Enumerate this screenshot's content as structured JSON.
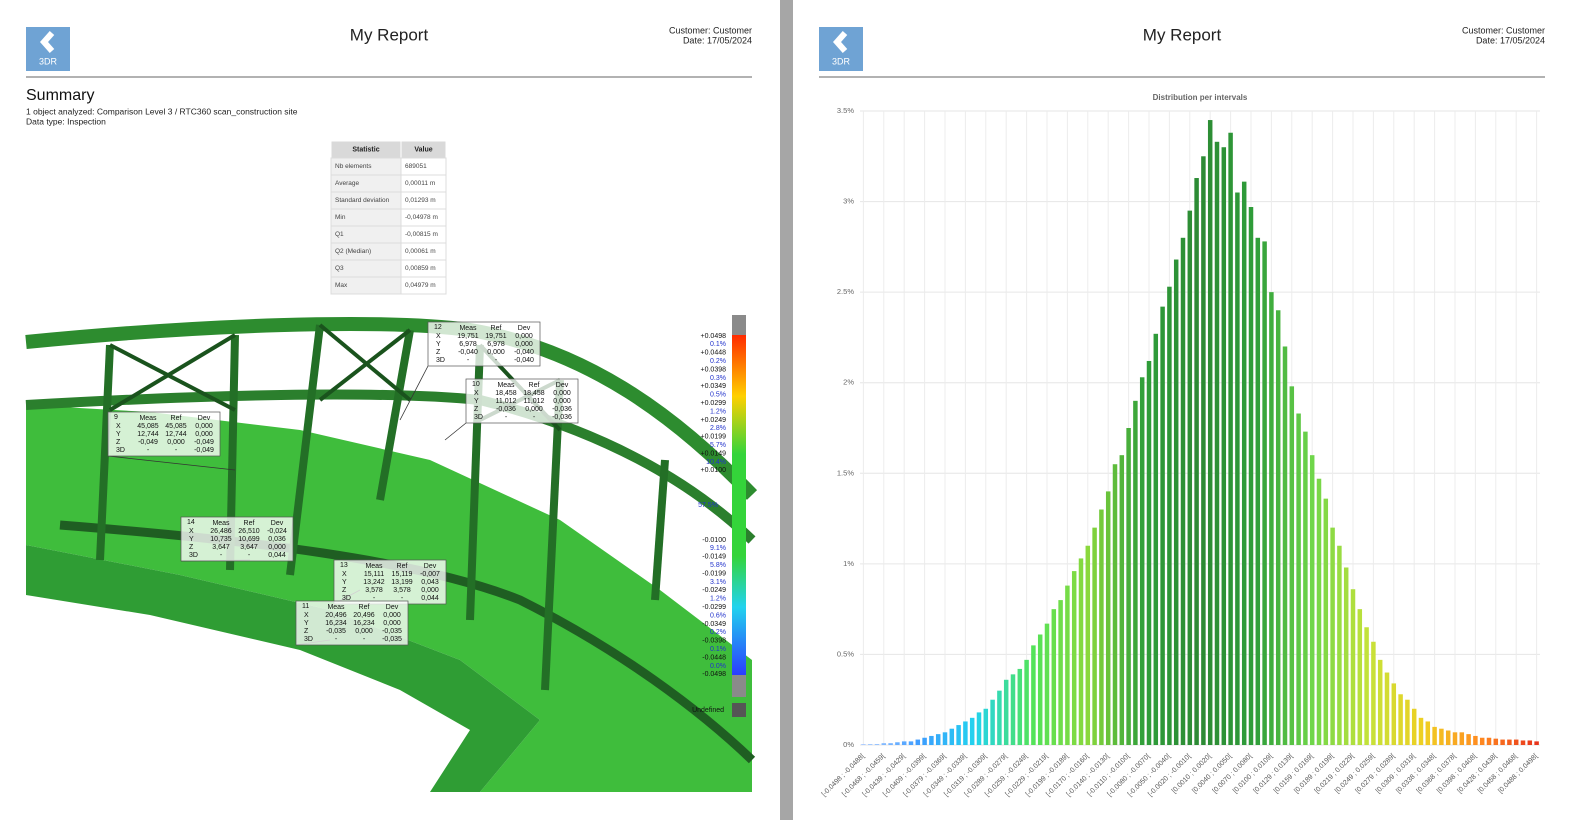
{
  "header": {
    "logo": "3DR",
    "title": "My Report",
    "customer": "Customer: Customer",
    "date": "Date: 17/05/2024"
  },
  "summary": {
    "heading": "Summary",
    "line1": "1 object analyzed: Comparison Level 3 / RTC360 scan_construction site",
    "line2": "Data type: Inspection"
  },
  "table": {
    "columns": [
      "Statistic",
      "Value"
    ],
    "rows": [
      [
        "Nb elements",
        "689051"
      ],
      [
        "Average",
        "0,00011 m"
      ],
      [
        "Standard deviation",
        "0,01293 m"
      ],
      [
        "Min",
        "-0,04978 m"
      ],
      [
        "Q1",
        "-0,00815 m"
      ],
      [
        "Q2 (Median)",
        "0,00061 m"
      ],
      [
        "Q3",
        "0,00859 m"
      ],
      [
        "Max",
        "0,04979 m"
      ]
    ]
  },
  "viewer": {
    "callouts": [
      {
        "id": "12",
        "columns": [
          "Meas",
          "Ref",
          "Dev"
        ],
        "rows": [
          [
            "X",
            "19,751",
            "19,751",
            "0,000"
          ],
          [
            "Y",
            "6,978",
            "6,978",
            "0,000"
          ],
          [
            "Z",
            "-0,040",
            "0,000",
            "-0,040"
          ],
          [
            "3D",
            "-",
            "-",
            "-0,040"
          ]
        ]
      },
      {
        "id": "10",
        "columns": [
          "Meas",
          "Ref",
          "Dev"
        ],
        "rows": [
          [
            "X",
            "18,458",
            "18,458",
            "0,000"
          ],
          [
            "Y",
            "11,012",
            "11,012",
            "0,000"
          ],
          [
            "Z",
            "-0,036",
            "0,000",
            "-0,036"
          ],
          [
            "3D",
            "-",
            "-",
            "-0,036"
          ]
        ]
      },
      {
        "id": "9",
        "columns": [
          "Meas",
          "Ref",
          "Dev"
        ],
        "rows": [
          [
            "X",
            "45,085",
            "45,085",
            "0,000"
          ],
          [
            "Y",
            "12,744",
            "12,744",
            "0,000"
          ],
          [
            "Z",
            "-0,049",
            "0,000",
            "-0,049"
          ],
          [
            "3D",
            "-",
            "-",
            "-0,049"
          ]
        ]
      },
      {
        "id": "14",
        "columns": [
          "Meas",
          "Ref",
          "Dev"
        ],
        "rows": [
          [
            "X",
            "26,486",
            "26,510",
            "-0,024"
          ],
          [
            "Y",
            "10,735",
            "10,699",
            "0,036"
          ],
          [
            "Z",
            "3,647",
            "3,647",
            "0,000"
          ],
          [
            "3D",
            "-",
            "-",
            "0,044"
          ]
        ]
      },
      {
        "id": "13",
        "columns": [
          "Meas",
          "Ref",
          "Dev"
        ],
        "rows": [
          [
            "X",
            "15,111",
            "15,119",
            "-0,007"
          ],
          [
            "Y",
            "13,242",
            "13,199",
            "0,043"
          ],
          [
            "Z",
            "3,578",
            "3,578",
            "0,000"
          ],
          [
            "3D",
            "-",
            "-",
            "0,044"
          ]
        ]
      },
      {
        "id": "11",
        "columns": [
          "Meas",
          "Ref",
          "Dev"
        ],
        "rows": [
          [
            "X",
            "20,496",
            "20,496",
            "0,000"
          ],
          [
            "Y",
            "16,234",
            "16,234",
            "0,000"
          ],
          [
            "Z",
            "-0,035",
            "0,000",
            "-0,035"
          ],
          [
            "3D",
            "-",
            "-",
            "-0,035"
          ]
        ]
      }
    ],
    "scale_upper": [
      "+0.0498",
      "0.1%",
      "+0.0448",
      "0.2%",
      "+0.0398",
      "0.3%",
      "+0.0349",
      "0.5%",
      "+0.0299",
      "1.2%",
      "+0.0249",
      "2.8%",
      "+0.0199",
      "5.7%",
      "+0.0149",
      "10.4%",
      "+0.0100"
    ],
    "scale_middle": "57.5%",
    "scale_lower": [
      "-0.0100",
      "9.1%",
      "-0.0149",
      "5.8%",
      "-0.0199",
      "3.1%",
      "-0.0249",
      "1.2%",
      "-0.0299",
      "0.6%",
      "-0.0349",
      "0.2%",
      "-0.0398",
      "0.1%",
      "-0.0448",
      "0.0%",
      "-0.0498"
    ],
    "undefined": "Undefined"
  },
  "chart_data": {
    "type": "bar",
    "title": "Distribution per intervals",
    "categories": [
      "[-0.0498 ; -0.0488[",
      null,
      null,
      "[-0.0468 ; -0.0459[",
      null,
      null,
      "[-0.0439 ; -0.0429[",
      null,
      null,
      "[-0.0409 ; -0.0399[",
      null,
      null,
      "[-0.0379 ; -0.0369[",
      null,
      null,
      "[-0.0349 ; -0.0339[",
      null,
      null,
      "[-0.0319 ; -0.0309[",
      null,
      null,
      "[-0.0289 ; -0.0279[",
      null,
      null,
      "[-0.0259 ; -0.0249[",
      null,
      null,
      "[-0.0229 ; -0.0219[",
      null,
      null,
      "[-0.0199 ; -0.0189[",
      null,
      null,
      "[-0.0170 ; -0.0160[",
      null,
      null,
      "[-0.0140 ; -0.0130[",
      null,
      null,
      "[-0.0110 ; -0.0100[",
      null,
      null,
      "[-0.0080 ; -0.0070[",
      null,
      null,
      "[-0.0050 ; -0.0040[",
      null,
      null,
      "[-0.0020 ; -0.0010[",
      null,
      null,
      "[0.0010 ; 0.0020[",
      null,
      null,
      "[0.0040 ; 0.0050[",
      null,
      null,
      "[0.0070 ; 0.0080[",
      null,
      null,
      "[0.0100 ; 0.0109[",
      null,
      null,
      "[0.0129 ; 0.0139[",
      null,
      null,
      "[0.0159 ; 0.0169[",
      null,
      null,
      "[0.0189 ; 0.0199[",
      null,
      null,
      "[0.0219 ; 0.0229[",
      null,
      null,
      "[0.0249 ; 0.0259[",
      null,
      null,
      "[0.0279 ; 0.0289[",
      null,
      null,
      "[0.0309 ; 0.0319[",
      null,
      null,
      "[0.0338 ; 0.0348[",
      null,
      null,
      "[0.0368 ; 0.0378[",
      null,
      null,
      "[0.0398 ; 0.0408[",
      null,
      null,
      "[0.0428 ; 0.0438[",
      null,
      null,
      "[0.0458 ; 0.0468[",
      null,
      null,
      "[0.0488 ; 0.0498["
    ],
    "values": [
      0.005,
      0.005,
      0.005,
      0.01,
      0.01,
      0.015,
      0.02,
      0.02,
      0.03,
      0.04,
      0.05,
      0.06,
      0.07,
      0.09,
      0.11,
      0.13,
      0.15,
      0.18,
      0.2,
      0.25,
      0.3,
      0.36,
      0.39,
      0.42,
      0.47,
      0.55,
      0.61,
      0.67,
      0.75,
      0.8,
      0.88,
      0.96,
      1.03,
      1.1,
      1.2,
      1.3,
      1.4,
      1.55,
      1.6,
      1.75,
      1.9,
      2.03,
      2.12,
      2.27,
      2.42,
      2.53,
      2.68,
      2.8,
      2.95,
      3.13,
      3.25,
      3.45,
      3.33,
      3.3,
      3.38,
      3.05,
      3.11,
      2.97,
      2.8,
      2.78,
      2.5,
      2.4,
      2.2,
      1.98,
      1.83,
      1.73,
      1.6,
      1.47,
      1.36,
      1.2,
      1.1,
      0.98,
      0.86,
      0.75,
      0.65,
      0.57,
      0.47,
      0.4,
      0.34,
      0.28,
      0.25,
      0.2,
      0.15,
      0.13,
      0.1,
      0.09,
      0.08,
      0.07,
      0.07,
      0.06,
      0.05,
      0.04,
      0.04,
      0.035,
      0.03,
      0.03,
      0.03,
      0.025,
      0.025,
      0.02
    ],
    "color_scale": [
      "#a9c9ff",
      "#3d9cff",
      "#22d3ee",
      "#52e35a",
      "#8ad83c",
      "#2f9e3a",
      "#2c8a34",
      "#2f9e3a",
      "#6fd64a",
      "#c5e23a",
      "#f0cf22",
      "#ff8a20",
      "#e8341c"
    ],
    "ylim": [
      0,
      3.5
    ],
    "yticks": [
      {
        "value": 0,
        "label": "0%"
      },
      {
        "value": 0.5,
        "label": "0.5%"
      },
      {
        "value": 1,
        "label": "1%"
      },
      {
        "value": 1.5,
        "label": "1.5%"
      },
      {
        "value": 2,
        "label": "2%"
      },
      {
        "value": 2.5,
        "label": "2.5%"
      },
      {
        "value": 3,
        "label": "3%"
      },
      {
        "value": 3.5,
        "label": "3.5%"
      }
    ],
    "grid": true
  }
}
